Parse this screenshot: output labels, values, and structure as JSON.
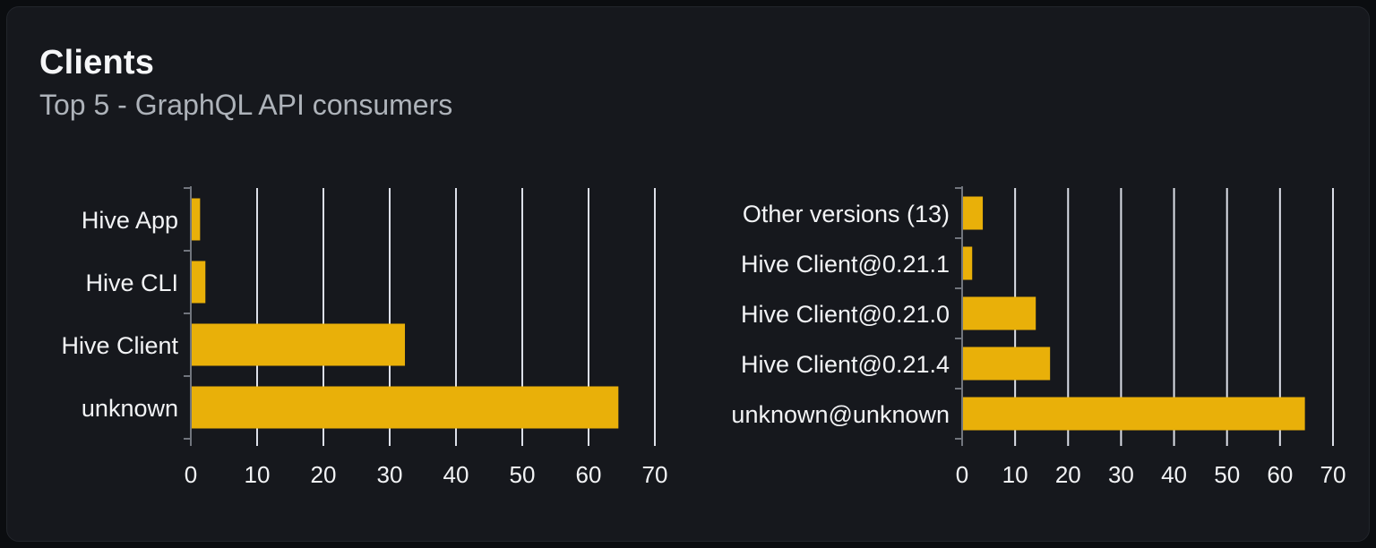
{
  "header": {
    "title": "Clients",
    "subtitle": "Top 5 - GraphQL API consumers"
  },
  "colors": {
    "bar": "#e9b009",
    "gridline": "#dcdfe8",
    "axis": "#71757d",
    "category_label": "#f2f3f5",
    "tick_label": "#f2f3f5",
    "card_background": "#16181d",
    "page_background": "#0b0d10",
    "title_text": "#f5f6f8",
    "subtitle_text": "#aeb3ba"
  },
  "chart_data": [
    {
      "type": "bar",
      "orientation": "horizontal",
      "title": "",
      "categories": [
        "Hive App",
        "Hive CLI",
        "Hive Client",
        "unknown"
      ],
      "values": [
        1.4,
        2.2,
        32.3,
        64.5
      ],
      "xlabel": "",
      "ylabel": "",
      "xlim": [
        0,
        70
      ],
      "xticks": [
        0,
        10,
        20,
        30,
        40,
        50,
        60,
        70
      ],
      "grid": true,
      "legend": "none",
      "category_order": "top-to-bottom"
    },
    {
      "type": "bar",
      "orientation": "horizontal",
      "title": "",
      "categories": [
        "Other versions (13)",
        "Hive Client@0.21.1",
        "Hive Client@0.21.0",
        "Hive Client@0.21.4",
        "unknown@unknown"
      ],
      "values": [
        3.9,
        1.9,
        13.9,
        16.6,
        64.7
      ],
      "xlabel": "",
      "ylabel": "",
      "xlim": [
        0,
        70
      ],
      "xticks": [
        0,
        10,
        20,
        30,
        40,
        50,
        60,
        70
      ],
      "grid": true,
      "legend": "none",
      "category_order": "top-to-bottom"
    }
  ]
}
